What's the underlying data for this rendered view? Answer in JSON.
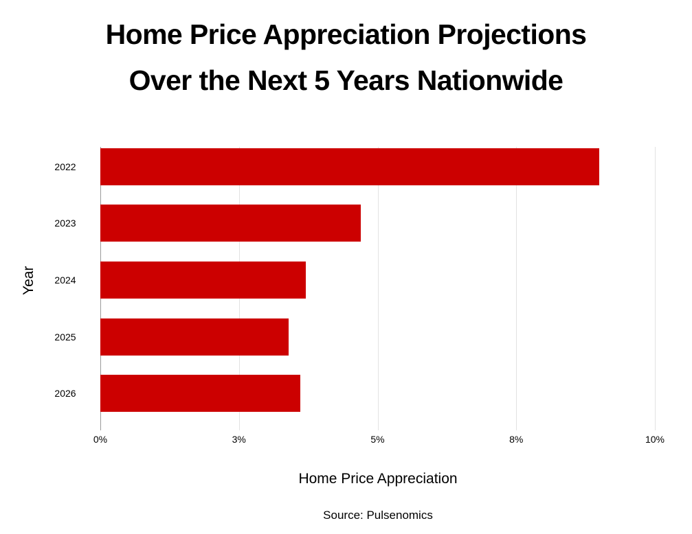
{
  "title_line1": "Home Price Appreciation Projections",
  "title_line2": "Over the Next 5 Years Nationwide",
  "xlabel": "Home Price Appreciation",
  "ylabel": "Year",
  "source": "Source: Pulsenomics",
  "colors": {
    "bar": "#cc0000",
    "grid": "#e2e2e2"
  },
  "x_ticks": [
    {
      "label": "0%",
      "value": 0
    },
    {
      "label": "3%",
      "value": 2.5
    },
    {
      "label": "5%",
      "value": 5
    },
    {
      "label": "8%",
      "value": 7.5
    },
    {
      "label": "10%",
      "value": 10
    }
  ],
  "chart_data": {
    "type": "bar",
    "orientation": "horizontal",
    "title": "Home Price Appreciation Projections Over the Next 5 Years Nationwide",
    "xlabel": "Home Price Appreciation",
    "ylabel": "Year",
    "categories": [
      "2022",
      "2023",
      "2024",
      "2025",
      "2026"
    ],
    "values": [
      9.0,
      4.7,
      3.7,
      3.4,
      3.6
    ],
    "unit": "%",
    "xlim": [
      0,
      10
    ],
    "x_tick_labels": [
      "0%",
      "3%",
      "5%",
      "8%",
      "10%"
    ],
    "grid": true,
    "legend": "none",
    "source": "Source: Pulsenomics"
  }
}
